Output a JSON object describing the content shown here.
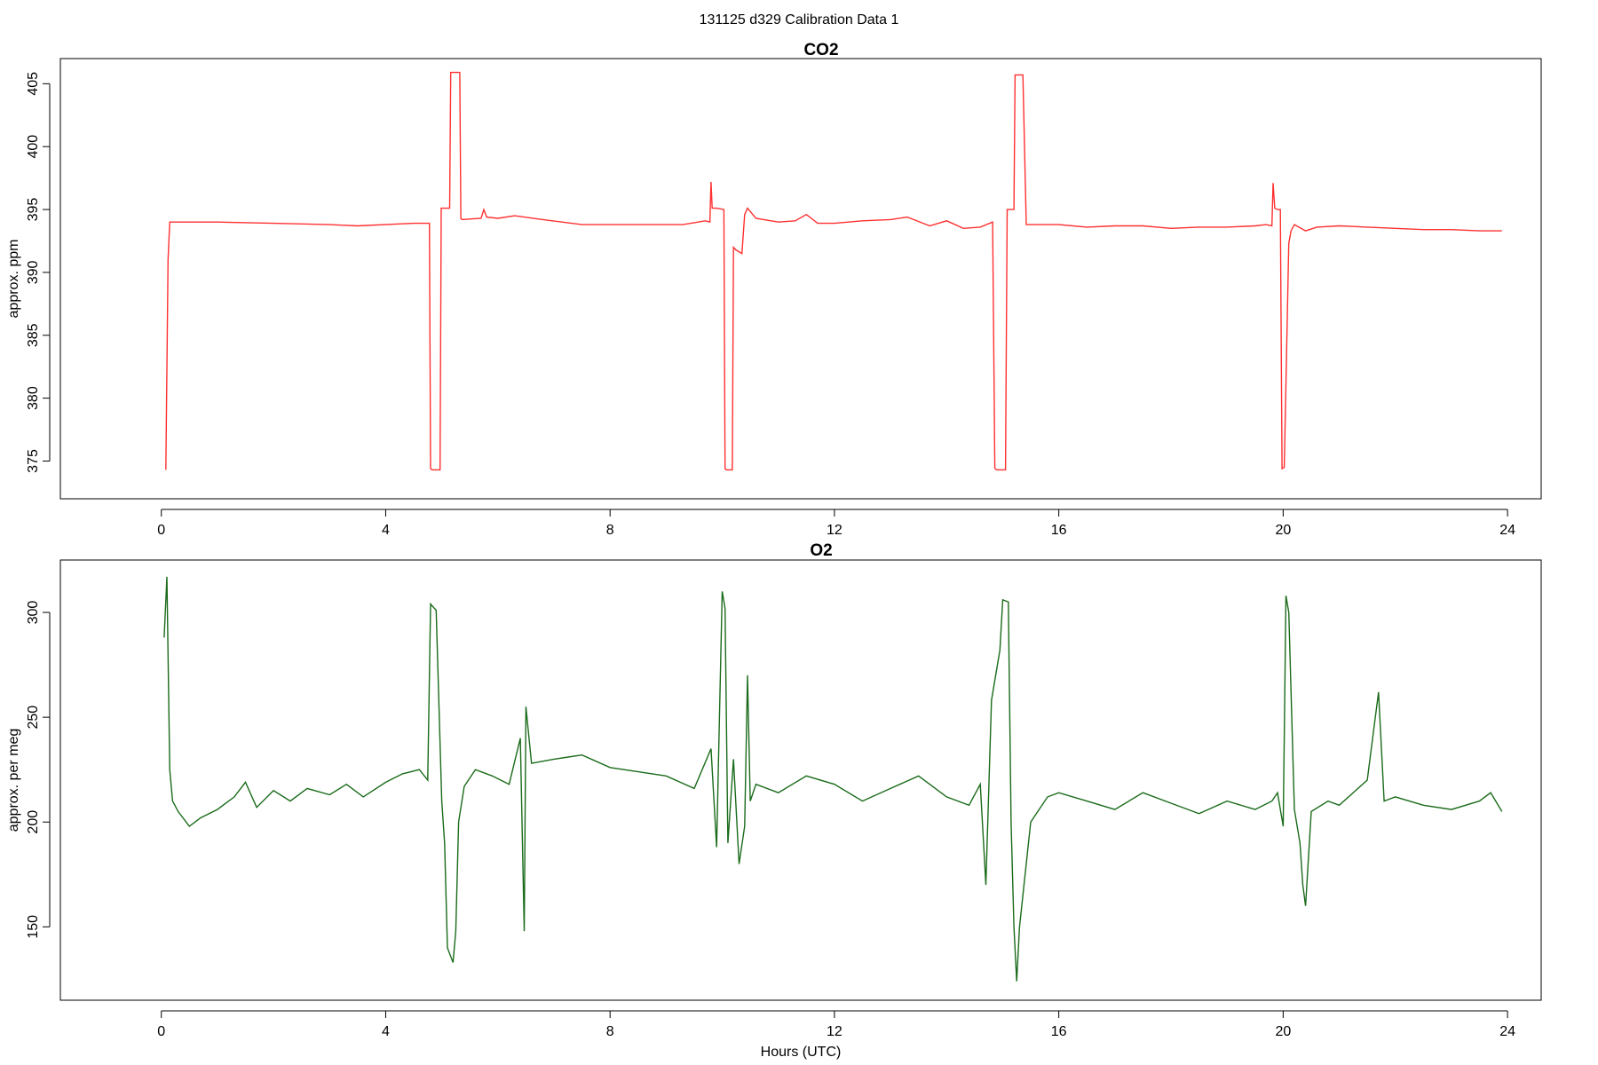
{
  "figure": {
    "suptitle": "131125   d329   Calibration Data 1",
    "xlabel": "Hours (UTC)"
  },
  "chart_data": [
    {
      "type": "line",
      "title": "CO2",
      "xlabel": "",
      "ylabel": "approx. ppm",
      "xlim": [
        -1.8,
        24.6
      ],
      "ylim": [
        372,
        407
      ],
      "xticks": [
        0,
        4,
        8,
        12,
        16,
        20,
        24
      ],
      "yticks": [
        375,
        380,
        385,
        390,
        395,
        400,
        405
      ],
      "grid": false,
      "legend": "none",
      "series": [
        {
          "color": "#ff3030",
          "x": [
            0.08,
            0.12,
            0.15,
            1,
            2,
            3,
            3.5,
            4.5,
            4.78,
            4.8,
            4.83,
            4.97,
            4.99,
            5.02,
            5.14,
            5.16,
            5.18,
            5.32,
            5.34,
            5.36,
            5.7,
            5.75,
            5.8,
            6,
            6.3,
            6.8,
            7.5,
            8.5,
            9.3,
            9.7,
            9.78,
            9.8,
            9.82,
            9.9,
            10.03,
            10.05,
            10.07,
            10.18,
            10.2,
            10.24,
            10.35,
            10.4,
            10.45,
            10.6,
            11,
            11.3,
            11.5,
            11.7,
            12,
            12.5,
            13,
            13.3,
            13.7,
            14,
            14.3,
            14.6,
            14.82,
            14.86,
            14.9,
            15.05,
            15.08,
            15.1,
            15.2,
            15.22,
            15.3,
            15.36,
            15.42,
            16,
            16.5,
            17,
            17.5,
            18,
            18.5,
            19,
            19.5,
            19.7,
            19.8,
            19.82,
            19.85,
            19.9,
            19.95,
            19.98,
            20.02,
            20.1,
            20.14,
            20.2,
            20.4,
            20.6,
            21,
            21.5,
            22,
            22.5,
            23,
            23.5,
            23.9
          ],
          "y": [
            374.3,
            391,
            394,
            394,
            393.9,
            393.8,
            393.7,
            393.9,
            393.9,
            374.4,
            374.3,
            374.3,
            395.1,
            395.1,
            395.1,
            405.9,
            405.9,
            405.9,
            394.3,
            394.2,
            394.3,
            395,
            394.4,
            394.3,
            394.5,
            394.2,
            393.8,
            393.8,
            393.8,
            394.1,
            394,
            397.2,
            395.1,
            395.1,
            395,
            374.4,
            374.3,
            374.3,
            392,
            391.8,
            391.5,
            394.6,
            395.1,
            394.3,
            394,
            394.1,
            394.6,
            393.9,
            393.9,
            394.1,
            394.2,
            394.4,
            393.7,
            394.1,
            393.5,
            393.6,
            394,
            374.4,
            374.3,
            374.3,
            395,
            395,
            395,
            405.7,
            405.7,
            405.7,
            393.8,
            393.8,
            393.6,
            393.7,
            393.7,
            393.5,
            393.6,
            393.6,
            393.7,
            393.8,
            393.7,
            397.1,
            395.1,
            395,
            395,
            374.4,
            374.5,
            392.3,
            393.3,
            393.8,
            393.3,
            393.6,
            393.7,
            393.6,
            393.5,
            393.4,
            393.4,
            393.3,
            393.3
          ]
        }
      ]
    },
    {
      "type": "line",
      "title": "O2",
      "xlabel": "Hours (UTC)",
      "ylabel": "approx. per meg",
      "xlim": [
        -1.8,
        24.6
      ],
      "ylim": [
        115,
        325
      ],
      "xticks": [
        0,
        4,
        8,
        12,
        16,
        20,
        24
      ],
      "yticks": [
        150,
        200,
        250,
        300
      ],
      "grid": false,
      "legend": "none",
      "series": [
        {
          "color": "#1a6b1a",
          "x": [
            0.05,
            0.1,
            0.15,
            0.2,
            0.3,
            0.5,
            0.7,
            1.0,
            1.3,
            1.5,
            1.7,
            2.0,
            2.3,
            2.6,
            3.0,
            3.3,
            3.6,
            4.0,
            4.3,
            4.6,
            4.75,
            4.8,
            4.9,
            5.0,
            5.05,
            5.1,
            5.2,
            5.25,
            5.3,
            5.4,
            5.6,
            5.9,
            6.2,
            6.4,
            6.47,
            6.5,
            6.6,
            7.0,
            7.5,
            8.0,
            8.5,
            9.0,
            9.5,
            9.8,
            9.9,
            10.0,
            10.05,
            10.1,
            10.2,
            10.3,
            10.4,
            10.45,
            10.5,
            10.6,
            11.0,
            11.5,
            12.0,
            12.5,
            13.0,
            13.5,
            14.0,
            14.4,
            14.6,
            14.7,
            14.8,
            14.95,
            15.0,
            15.1,
            15.15,
            15.2,
            15.25,
            15.3,
            15.5,
            15.8,
            16.0,
            16.5,
            17.0,
            17.5,
            18.0,
            18.5,
            19.0,
            19.5,
            19.8,
            19.9,
            20.0,
            20.05,
            20.1,
            20.2,
            20.3,
            20.35,
            20.4,
            20.5,
            20.8,
            21.0,
            21.5,
            21.7,
            21.8,
            22.0,
            22.5,
            23.0,
            23.5,
            23.7,
            23.9
          ],
          "y": [
            288,
            317,
            225,
            210,
            205,
            198,
            202,
            206,
            212,
            219,
            207,
            215,
            210,
            216,
            213,
            218,
            212,
            219,
            223,
            225,
            220,
            304,
            301,
            210,
            190,
            140,
            133,
            148,
            200,
            217,
            225,
            222,
            218,
            240,
            148,
            255,
            228,
            230,
            232,
            226,
            224,
            222,
            216,
            235,
            188,
            310,
            302,
            190,
            230,
            180,
            198,
            270,
            210,
            218,
            214,
            222,
            218,
            210,
            216,
            222,
            212,
            208,
            218,
            170,
            258,
            282,
            306,
            305,
            200,
            150,
            124,
            150,
            200,
            212,
            214,
            210,
            206,
            214,
            209,
            204,
            210,
            206,
            210,
            214,
            198,
            308,
            300,
            206,
            190,
            170,
            160,
            205,
            210,
            208,
            220,
            262,
            210,
            212,
            208,
            206,
            210,
            214,
            205
          ]
        }
      ]
    }
  ]
}
